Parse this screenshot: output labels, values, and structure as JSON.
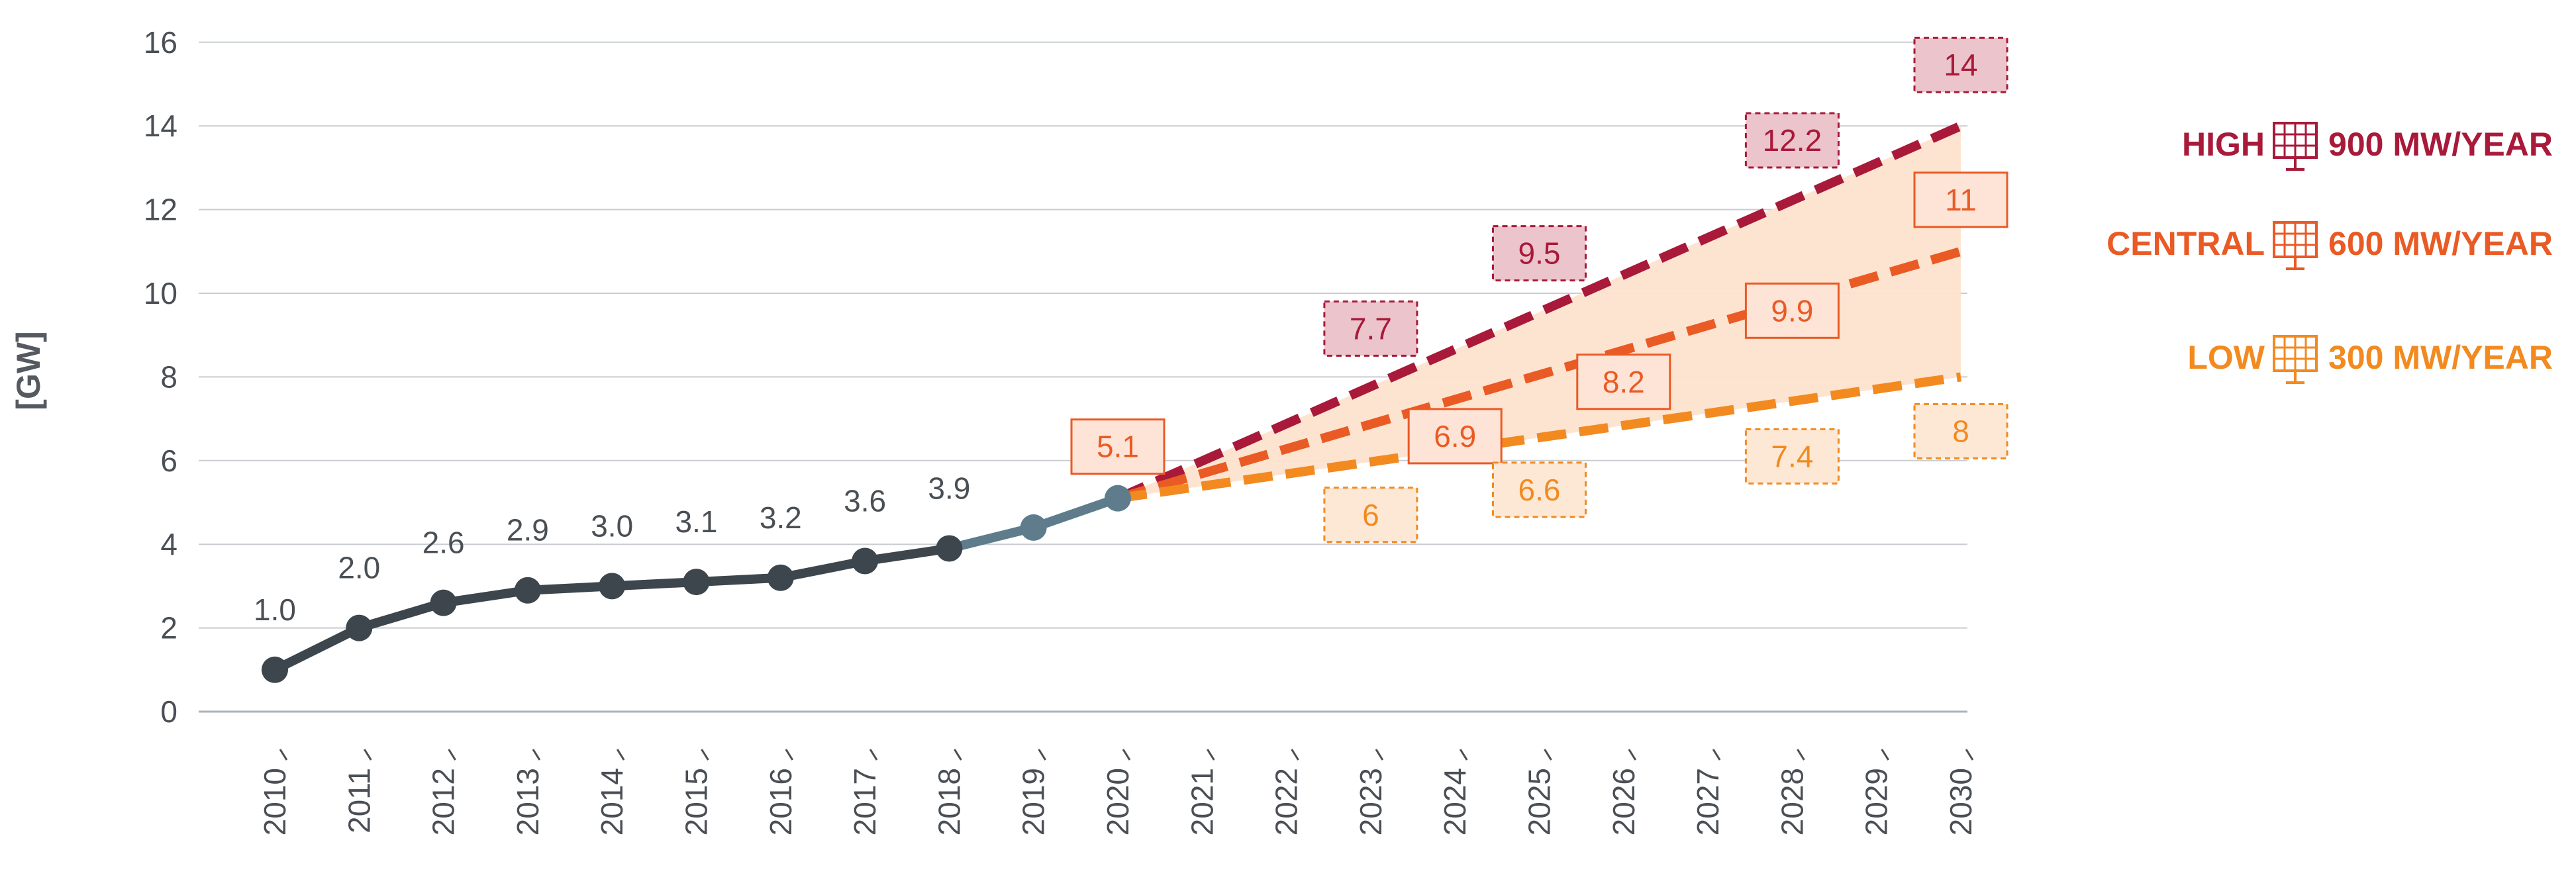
{
  "chart_data": {
    "type": "line",
    "ylabel": "[GW]",
    "ylim": [
      0,
      16
    ],
    "yticks": [
      0,
      2,
      4,
      6,
      8,
      10,
      12,
      14,
      16
    ],
    "grid": true,
    "categories": [
      "2010",
      "2011",
      "2012",
      "2013",
      "2014",
      "2015",
      "2016",
      "2017",
      "2018",
      "2019",
      "2020",
      "2021",
      "2022",
      "2023",
      "2024",
      "2025",
      "2026",
      "2027",
      "2028",
      "2029",
      "2030"
    ],
    "historical": {
      "name": "Installed capacity",
      "x": [
        2010,
        2011,
        2012,
        2013,
        2014,
        2015,
        2016,
        2017,
        2018,
        2019,
        2020
      ],
      "values": [
        1.0,
        2.0,
        2.6,
        2.9,
        3.0,
        3.1,
        3.2,
        3.6,
        3.9,
        4.4,
        5.1
      ],
      "labels": [
        "1.0",
        "2.0",
        "2.6",
        "2.9",
        "3.0",
        "3.1",
        "3.2",
        "3.6",
        "3.9",
        null,
        "5.1"
      ],
      "color": "#3d464c",
      "recent_color": "#5e7c8c"
    },
    "scenarios": [
      {
        "key": "high",
        "legend_prefix": "HIGH",
        "legend_suffix": "900 MW/YEAR",
        "color": "#a8193a",
        "box_fill": "#ecc4cb",
        "x": [
          2020,
          2030
        ],
        "values": [
          5.1,
          14
        ],
        "annotations": [
          {
            "year": 2023,
            "value": 7.7,
            "label": "7.7"
          },
          {
            "year": 2025,
            "value": 9.5,
            "label": "9.5"
          },
          {
            "year": 2028,
            "value": 12.2,
            "label": "12.2"
          },
          {
            "year": 2030,
            "value": 14,
            "label": "14"
          }
        ]
      },
      {
        "key": "central",
        "legend_prefix": "CENTRAL",
        "legend_suffix": "600 MW/YEAR",
        "color": "#ea5a24",
        "box_fill": "#fde4d6",
        "x": [
          2020,
          2030
        ],
        "values": [
          5.1,
          11
        ],
        "annotations": [
          {
            "year": 2020,
            "value": 5.1,
            "label": "5.1"
          },
          {
            "year": 2024,
            "value": 6.9,
            "label": "6.9"
          },
          {
            "year": 2026,
            "value": 8.2,
            "label": "8.2"
          },
          {
            "year": 2028,
            "value": 9.9,
            "label": "9.9"
          },
          {
            "year": 2030,
            "value": 11,
            "label": "11"
          }
        ]
      },
      {
        "key": "low",
        "legend_prefix": "LOW",
        "legend_suffix": "300 MW/YEAR",
        "color": "#f28a1f",
        "box_fill": "#fde8d6",
        "x": [
          2020,
          2030
        ],
        "values": [
          5.1,
          8
        ],
        "annotations": [
          {
            "year": 2023,
            "value": 6,
            "label": "6"
          },
          {
            "year": 2025,
            "value": 6.6,
            "label": "6.6"
          },
          {
            "year": 2028,
            "value": 7.4,
            "label": "7.4"
          },
          {
            "year": 2030,
            "value": 8,
            "label": "8"
          }
        ]
      }
    ],
    "fan_fill": "#fde3cf"
  }
}
